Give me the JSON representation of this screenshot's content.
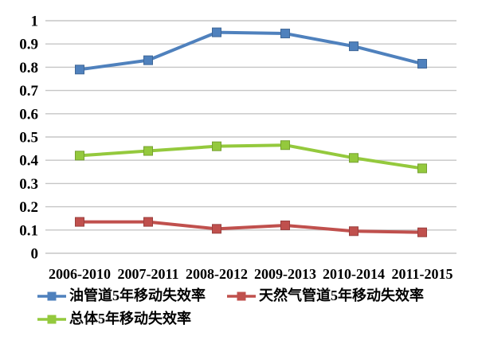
{
  "chart_data": {
    "type": "line",
    "title": "",
    "xlabel": "",
    "ylabel": "",
    "categories": [
      "2006-2010",
      "2007-2011",
      "2008-2012",
      "2009-2013",
      "2010-2014",
      "2011-2015"
    ],
    "series": [
      {
        "name": "油管道5年移动失效率",
        "color": "#4F81BD",
        "values": [
          0.79,
          0.83,
          0.95,
          0.945,
          0.89,
          0.815
        ]
      },
      {
        "name": "天然气管道5年移动失效率",
        "color": "#C0504D",
        "values": [
          0.135,
          0.135,
          0.105,
          0.12,
          0.095,
          0.09
        ]
      },
      {
        "name": "总体5年移动失效率",
        "color": "#94C93D",
        "values": [
          0.42,
          0.44,
          0.46,
          0.465,
          0.41,
          0.365
        ]
      }
    ],
    "ylim": [
      0,
      1
    ],
    "ytick_labels": [
      "1",
      "0.9",
      "0.8",
      "0.7",
      "0.6",
      "0.5",
      "0.4",
      "0.3",
      "0.2",
      "0.1",
      "0"
    ],
    "ytick_values": [
      1,
      0.9,
      0.8,
      0.7,
      0.6,
      0.5,
      0.4,
      0.3,
      0.2,
      0.1,
      0
    ],
    "grid": "horizontal",
    "legend_position": "bottom",
    "gridline_color": "#C6C6C6",
    "text_color": "#000000",
    "background_color": "#FFFFFF"
  }
}
